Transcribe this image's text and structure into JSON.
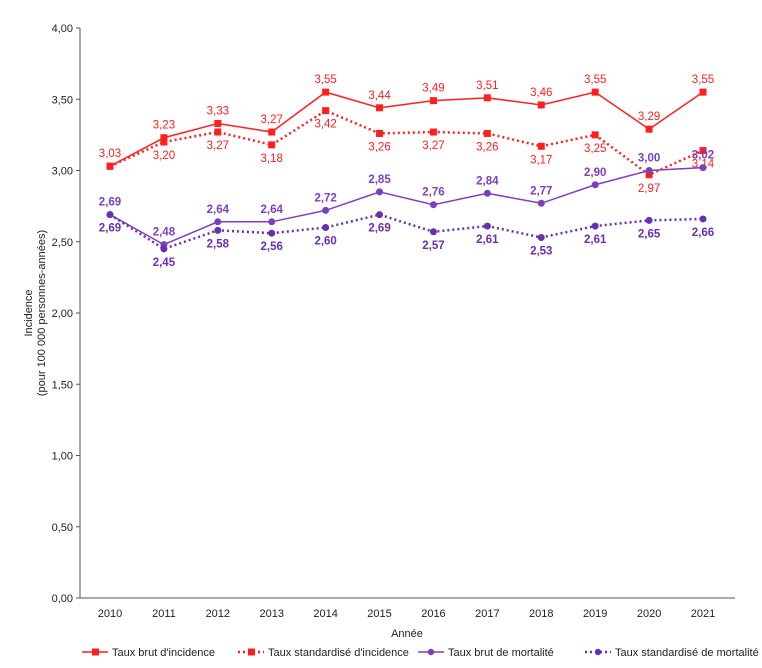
{
  "chart_data": {
    "type": "line",
    "title": "",
    "xlabel": "Année",
    "ylabel_lines": [
      "Incidence",
      "(pour 100 000 personnes-années)"
    ],
    "ylim": [
      0,
      4
    ],
    "y_ticks": [
      "0,00",
      "0,50",
      "1,00",
      "1,50",
      "2,00",
      "2,50",
      "3,00",
      "3,50",
      "4,00"
    ],
    "y_tick_values": [
      0,
      0.5,
      1,
      1.5,
      2,
      2.5,
      3,
      3.5,
      4
    ],
    "grid": false,
    "legend_position": "bottom",
    "categories": [
      "2010",
      "2011",
      "2012",
      "2013",
      "2014",
      "2015",
      "2016",
      "2017",
      "2018",
      "2019",
      "2020",
      "2021"
    ],
    "series": [
      {
        "name": "Taux brut d'incidence",
        "color": "#ff1f1f",
        "style": "solid",
        "marker": "square",
        "label_pos": "above",
        "values": [
          3.03,
          3.23,
          3.33,
          3.27,
          3.55,
          3.44,
          3.49,
          3.51,
          3.46,
          3.55,
          3.29,
          3.55
        ],
        "labels": [
          "3,03",
          "3,23",
          "3,33",
          "3,27",
          "3,55",
          "3,44",
          "3,49",
          "3,51",
          "3,46",
          "3,55",
          "3,29",
          "3,55"
        ]
      },
      {
        "name": "Taux standardisé d'incidence",
        "color": "#ff1f1f",
        "style": "dotted",
        "marker": "square",
        "label_pos": "below",
        "values": [
          3.03,
          3.2,
          3.27,
          3.18,
          3.42,
          3.26,
          3.27,
          3.26,
          3.17,
          3.25,
          2.97,
          3.14
        ],
        "labels": [
          "",
          "3,20",
          "3,27",
          "3,18",
          "3,42",
          "3,26",
          "3,27",
          "3,26",
          "3,17",
          "3,25",
          "2,97",
          "3,14"
        ]
      },
      {
        "name": "Taux brut de mortalité",
        "color": "#7d3fbf",
        "style": "solid",
        "marker": "circle",
        "label_pos": "above",
        "values": [
          2.69,
          2.48,
          2.64,
          2.64,
          2.72,
          2.85,
          2.76,
          2.84,
          2.77,
          2.9,
          3.0,
          3.02
        ],
        "labels": [
          "2,69",
          "2,48",
          "2,64",
          "2,64",
          "2,72",
          "2,85",
          "2,76",
          "2,84",
          "2,77",
          "2,90",
          "3,00",
          "3,02"
        ]
      },
      {
        "name": "Taux standardisé de mortalité",
        "color": "#6a2fb0",
        "style": "dotted",
        "marker": "circle",
        "label_pos": "below",
        "values": [
          2.69,
          2.45,
          2.58,
          2.56,
          2.6,
          2.69,
          2.57,
          2.61,
          2.53,
          2.61,
          2.65,
          2.66
        ],
        "labels": [
          "2,69",
          "2,45",
          "2,58",
          "2,56",
          "2,60",
          "2,69",
          "2,57",
          "2,61",
          "2,53",
          "2,61",
          "2,65",
          "2,66"
        ]
      }
    ]
  }
}
